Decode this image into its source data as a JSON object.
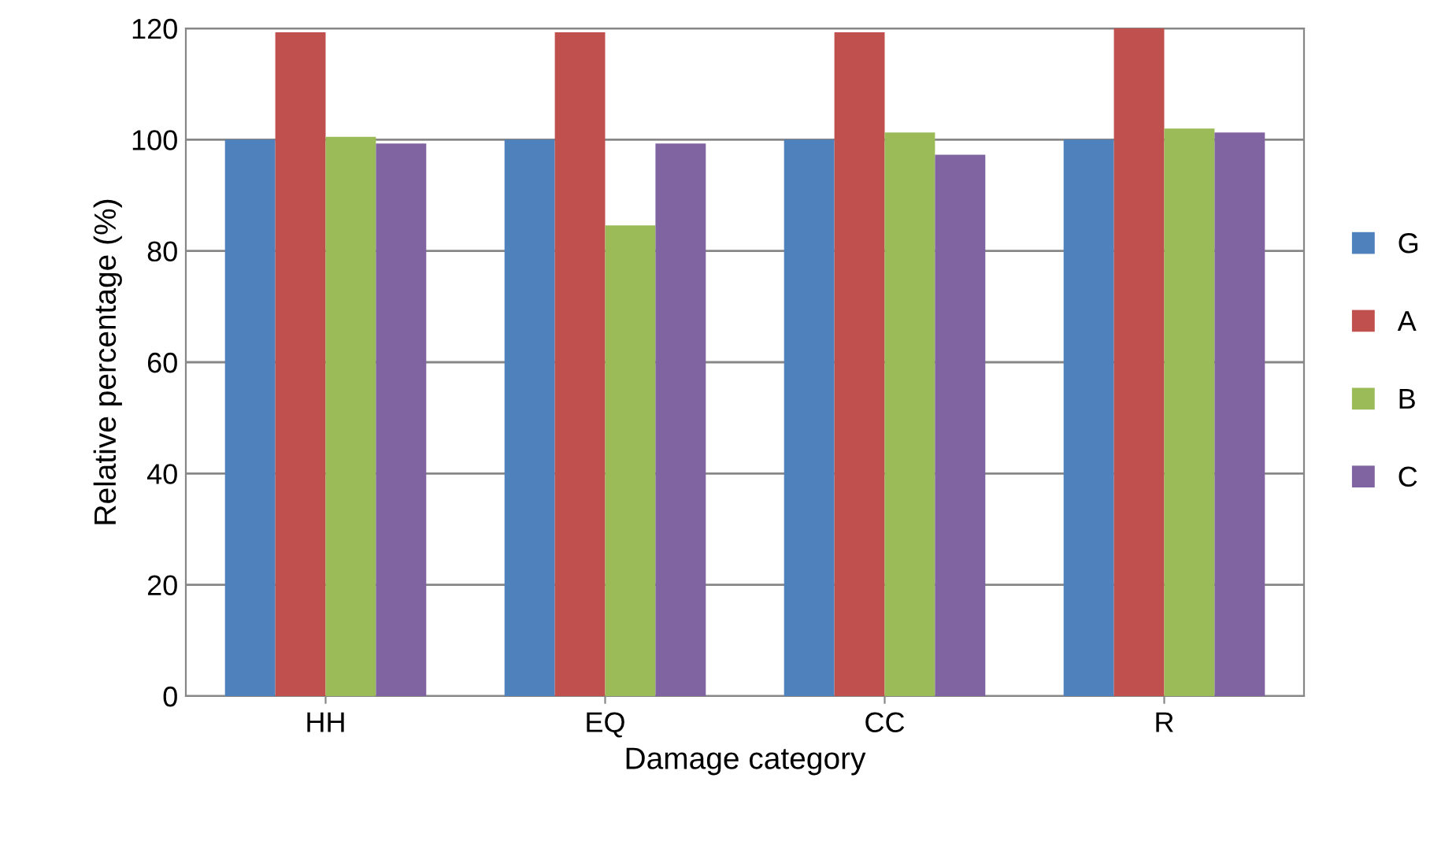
{
  "chart_data": {
    "type": "bar",
    "xlabel": "Damage category",
    "ylabel": "Relative percentage (%)",
    "categories": [
      "HH",
      "EQ",
      "CC",
      "R"
    ],
    "series": [
      {
        "name": "G",
        "color": "#4f81bd",
        "values": [
          100,
          100,
          100,
          100
        ]
      },
      {
        "name": "A",
        "color": "#c0504d",
        "values": [
          119.3,
          119.3,
          119.3,
          120
        ]
      },
      {
        "name": "B",
        "color": "#9bbb59",
        "values": [
          100.5,
          84.6,
          101.3,
          102
        ]
      },
      {
        "name": "C",
        "color": "#8064a2",
        "values": [
          99.3,
          99.3,
          97.3,
          101.3
        ]
      }
    ],
    "ylim": [
      0,
      120
    ],
    "yticks": [
      0,
      20,
      40,
      60,
      80,
      100,
      120
    ],
    "grid": "y",
    "legend": "right"
  }
}
